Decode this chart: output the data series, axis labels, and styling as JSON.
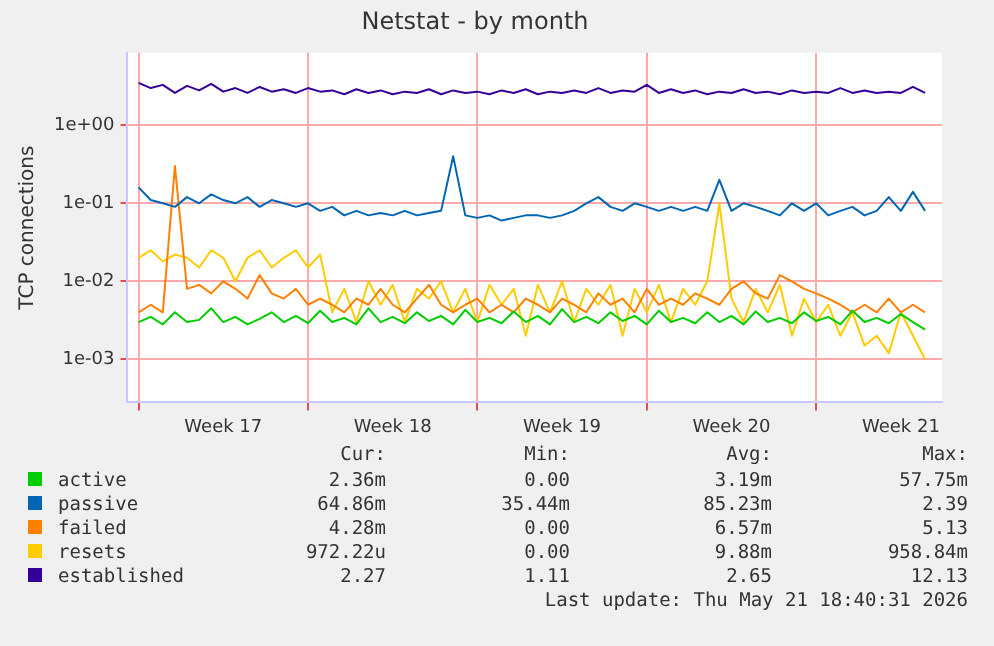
{
  "chart_data": {
    "type": "line",
    "title": "Netstat - by month",
    "ylabel": "TCP connections",
    "log": "y",
    "grid": true,
    "legend": "bottom",
    "marker": "none",
    "line_style": "solid",
    "categories": [
      null,
      null,
      null,
      null,
      null,
      null,
      null,
      "Week 17",
      null,
      null,
      null,
      null,
      null,
      null,
      null,
      null,
      null,
      null,
      null,
      null,
      null,
      "Week 18",
      null,
      null,
      null,
      null,
      null,
      null,
      null,
      null,
      null,
      null,
      null,
      null,
      null,
      "Week 19",
      null,
      null,
      null,
      null,
      null,
      null,
      null,
      null,
      null,
      null,
      null,
      null,
      null,
      "Week 20",
      null,
      null,
      null,
      null,
      null,
      null,
      null,
      null,
      null,
      null,
      null,
      null,
      null,
      "Week 21",
      null,
      null
    ],
    "ylim": [
      0.00028,
      8.5
    ],
    "yticks": [
      {
        "value": 0.001,
        "label": "1e-03"
      },
      {
        "value": 0.01,
        "label": "1e-02"
      },
      {
        "value": 0.1,
        "label": "1e-01"
      },
      {
        "value": 1,
        "label": "1e+00"
      }
    ],
    "series": [
      {
        "name": "active",
        "color": "#00cc00",
        "values": [
          0.003,
          0.0035,
          0.0028,
          0.004,
          0.003,
          0.0032,
          0.0045,
          0.003,
          0.0035,
          0.0028,
          0.0033,
          0.004,
          0.003,
          0.0036,
          0.0029,
          0.0042,
          0.003,
          0.0034,
          0.0028,
          0.0045,
          0.003,
          0.0035,
          0.0029,
          0.004,
          0.0031,
          0.0036,
          0.0028,
          0.0043,
          0.003,
          0.0034,
          0.0029,
          0.0041,
          0.003,
          0.0036,
          0.0028,
          0.0044,
          0.003,
          0.0035,
          0.0029,
          0.004,
          0.0031,
          0.0036,
          0.0028,
          0.0042,
          0.003,
          0.0034,
          0.0029,
          0.004,
          0.003,
          0.0036,
          0.0028,
          0.0041,
          0.003,
          0.0034,
          0.0029,
          0.004,
          0.0031,
          0.0035,
          0.0028,
          0.0042,
          0.003,
          0.0034,
          0.0029,
          0.0038,
          0.003,
          0.0024
        ]
      },
      {
        "name": "passive",
        "color": "#0066b3",
        "values": [
          0.16,
          0.11,
          0.1,
          0.09,
          0.12,
          0.1,
          0.13,
          0.11,
          0.1,
          0.12,
          0.09,
          0.11,
          0.1,
          0.09,
          0.1,
          0.08,
          0.09,
          0.07,
          0.08,
          0.07,
          0.075,
          0.07,
          0.08,
          0.07,
          0.075,
          0.08,
          0.4,
          0.07,
          0.065,
          0.07,
          0.06,
          0.065,
          0.07,
          0.07,
          0.065,
          0.07,
          0.08,
          0.1,
          0.12,
          0.09,
          0.08,
          0.1,
          0.09,
          0.08,
          0.09,
          0.08,
          0.09,
          0.08,
          0.2,
          0.08,
          0.1,
          0.09,
          0.08,
          0.07,
          0.1,
          0.08,
          0.1,
          0.07,
          0.08,
          0.09,
          0.07,
          0.08,
          0.12,
          0.08,
          0.14,
          0.08
        ]
      },
      {
        "name": "failed",
        "color": "#ff8000",
        "values": [
          0.004,
          0.005,
          0.004,
          0.3,
          0.008,
          0.009,
          0.007,
          0.01,
          0.008,
          0.006,
          0.012,
          0.007,
          0.006,
          0.008,
          0.005,
          0.006,
          0.005,
          0.004,
          0.006,
          0.005,
          0.008,
          0.005,
          0.004,
          0.006,
          0.009,
          0.005,
          0.004,
          0.005,
          0.006,
          0.004,
          0.005,
          0.004,
          0.006,
          0.005,
          0.004,
          0.006,
          0.005,
          0.004,
          0.007,
          0.005,
          0.006,
          0.004,
          0.008,
          0.005,
          0.006,
          0.005,
          0.007,
          0.006,
          0.005,
          0.008,
          0.01,
          0.007,
          0.006,
          0.012,
          0.01,
          0.008,
          0.007,
          0.006,
          0.005,
          0.004,
          0.005,
          0.004,
          0.006,
          0.004,
          0.005,
          0.004
        ]
      },
      {
        "name": "resets",
        "color": "#ffcc00",
        "values": [
          0.02,
          0.025,
          0.018,
          0.022,
          0.02,
          0.015,
          0.025,
          0.02,
          0.01,
          0.02,
          0.025,
          0.015,
          0.02,
          0.025,
          0.015,
          0.022,
          0.004,
          0.008,
          0.003,
          0.01,
          0.005,
          0.009,
          0.003,
          0.008,
          0.006,
          0.01,
          0.004,
          0.008,
          0.003,
          0.009,
          0.005,
          0.008,
          0.002,
          0.009,
          0.004,
          0.01,
          0.003,
          0.008,
          0.005,
          0.009,
          0.002,
          0.008,
          0.004,
          0.009,
          0.003,
          0.008,
          0.005,
          0.01,
          0.1,
          0.006,
          0.003,
          0.008,
          0.004,
          0.009,
          0.002,
          0.006,
          0.003,
          0.005,
          0.002,
          0.004,
          0.0015,
          0.002,
          0.0012,
          0.004,
          0.002,
          0.001
        ]
      },
      {
        "name": "established",
        "color": "#330099",
        "values": [
          3.5,
          3.0,
          3.3,
          2.6,
          3.2,
          2.8,
          3.4,
          2.7,
          3.0,
          2.6,
          3.1,
          2.7,
          2.9,
          2.6,
          3.0,
          2.7,
          2.8,
          2.5,
          2.9,
          2.6,
          2.8,
          2.5,
          2.7,
          2.6,
          2.9,
          2.5,
          2.8,
          2.6,
          2.7,
          2.5,
          2.8,
          2.6,
          2.9,
          2.5,
          2.7,
          2.6,
          2.8,
          2.6,
          3.0,
          2.6,
          2.8,
          2.7,
          3.3,
          2.6,
          2.9,
          2.6,
          2.8,
          2.5,
          2.7,
          2.6,
          2.9,
          2.6,
          2.7,
          2.5,
          2.8,
          2.6,
          2.7,
          2.6,
          3.0,
          2.6,
          2.8,
          2.6,
          2.7,
          2.6,
          3.1,
          2.6
        ]
      }
    ],
    "annotations": [
      "Cur:",
      "Min:",
      "Avg:",
      "Max:",
      "2.36m",
      "0.00",
      "3.19m",
      "57.75m",
      "64.86m",
      "35.44m",
      "85.23m",
      "2.39",
      "4.28m",
      "0.00",
      "6.57m",
      "5.13",
      "972.22u",
      "0.00",
      "9.88m",
      "958.84m",
      "2.27",
      "1.11",
      "2.65",
      "12.13",
      "Last update: Thu May 21 18:40:31 2026"
    ]
  }
}
